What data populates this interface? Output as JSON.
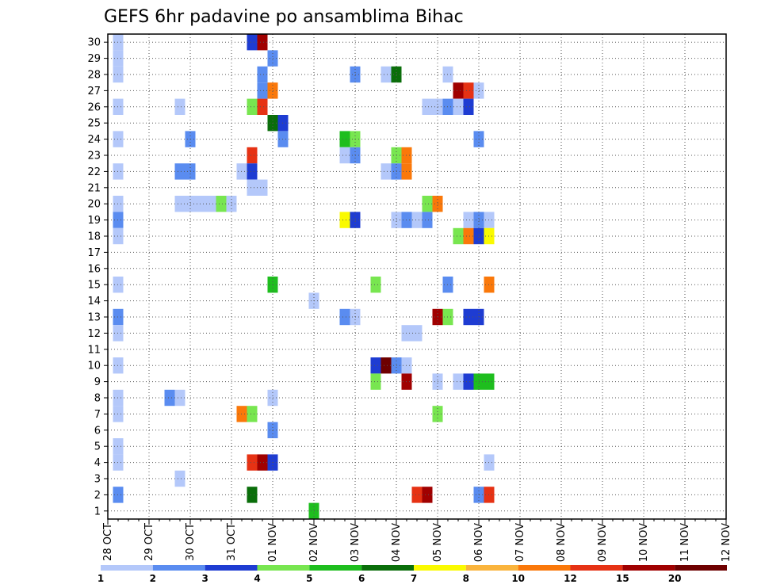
{
  "chart_data": {
    "type": "heatmap",
    "title": "GEFS 6hr padavine po ansamblima Bihac",
    "xlabel": "",
    "ylabel": "",
    "x_tick_labels": [
      "28 OCT",
      "29 OCT",
      "30 OCT",
      "31 OCT",
      "01 NOV",
      "02 NOV",
      "03 NOV",
      "04 NOV",
      "05 NOV",
      "06 NOV",
      "07 NOV",
      "08 NOV",
      "09 NOV",
      "10 NOV",
      "11 NOV",
      "12 NOV"
    ],
    "y_tick_labels": [
      1,
      2,
      3,
      4,
      5,
      6,
      7,
      8,
      9,
      10,
      11,
      12,
      13,
      14,
      15,
      16,
      17,
      18,
      19,
      20,
      21,
      22,
      23,
      24,
      25,
      26,
      27,
      28,
      29,
      30
    ],
    "ylim": [
      0,
      30
    ],
    "time_step_hours": 6,
    "steps_per_day": 4,
    "grid": "dotted",
    "legend": {
      "position": "bottom",
      "labels": [
        "1",
        "2",
        "3",
        "4",
        "5",
        "6",
        "7",
        "8",
        "10",
        "12",
        "15",
        "20"
      ],
      "colors": [
        "#b4c8fa",
        "#5a8cf0",
        "#1e3cd2",
        "#78e650",
        "#1ebe1e",
        "#0a6e0a",
        "#fafa00",
        "#fab43c",
        "#fa780a",
        "#e63214",
        "#a00000",
        "#6e0000"
      ]
    },
    "cells": [
      [
        1,
        30,
        1
      ],
      [
        14,
        30,
        3
      ],
      [
        15,
        30,
        11
      ],
      [
        1,
        29,
        1
      ],
      [
        16,
        29,
        2
      ],
      [
        1,
        28,
        1
      ],
      [
        15,
        28,
        2
      ],
      [
        24,
        28,
        2
      ],
      [
        27,
        28,
        1
      ],
      [
        28,
        28,
        6
      ],
      [
        33,
        28,
        1
      ],
      [
        15,
        27,
        2
      ],
      [
        16,
        27,
        9
      ],
      [
        34,
        27,
        11
      ],
      [
        35,
        27,
        10
      ],
      [
        36,
        27,
        1
      ],
      [
        1,
        26,
        1
      ],
      [
        7,
        26,
        1
      ],
      [
        14,
        26,
        4
      ],
      [
        15,
        26,
        10
      ],
      [
        31,
        26,
        1
      ],
      [
        32,
        26,
        1
      ],
      [
        33,
        26,
        2
      ],
      [
        34,
        26,
        1
      ],
      [
        35,
        26,
        3
      ],
      [
        16,
        25,
        6
      ],
      [
        17,
        25,
        3
      ],
      [
        36,
        24,
        2
      ],
      [
        1,
        24,
        1
      ],
      [
        8,
        24,
        2
      ],
      [
        17,
        24,
        2
      ],
      [
        23,
        24,
        5
      ],
      [
        24,
        24,
        4
      ],
      [
        14,
        23,
        10
      ],
      [
        23,
        23,
        1
      ],
      [
        24,
        23,
        2
      ],
      [
        28,
        23,
        4
      ],
      [
        29,
        23,
        9
      ],
      [
        1,
        22,
        1
      ],
      [
        7,
        22,
        2
      ],
      [
        8,
        22,
        2
      ],
      [
        13,
        22,
        1
      ],
      [
        14,
        22,
        3
      ],
      [
        27,
        22,
        1
      ],
      [
        28,
        22,
        2
      ],
      [
        29,
        22,
        9
      ],
      [
        14,
        21,
        1
      ],
      [
        15,
        21,
        1
      ],
      [
        1,
        20,
        1
      ],
      [
        7,
        20,
        1
      ],
      [
        8,
        20,
        1
      ],
      [
        9,
        20,
        1
      ],
      [
        10,
        20,
        1
      ],
      [
        11,
        20,
        4
      ],
      [
        12,
        20,
        1
      ],
      [
        31,
        20,
        4
      ],
      [
        32,
        20,
        9
      ],
      [
        1,
        19,
        2
      ],
      [
        23,
        19,
        7
      ],
      [
        24,
        19,
        3
      ],
      [
        28,
        19,
        1
      ],
      [
        29,
        19,
        2
      ],
      [
        30,
        19,
        1
      ],
      [
        31,
        19,
        2
      ],
      [
        35,
        19,
        1
      ],
      [
        36,
        19,
        2
      ],
      [
        37,
        19,
        1
      ],
      [
        1,
        18,
        1
      ],
      [
        34,
        18,
        4
      ],
      [
        35,
        18,
        9
      ],
      [
        36,
        18,
        3
      ],
      [
        37,
        18,
        7
      ],
      [
        1,
        15,
        1
      ],
      [
        16,
        15,
        5
      ],
      [
        26,
        15,
        4
      ],
      [
        33,
        15,
        2
      ],
      [
        37,
        15,
        9
      ],
      [
        20,
        14,
        1
      ],
      [
        1,
        13,
        2
      ],
      [
        23,
        13,
        2
      ],
      [
        24,
        13,
        1
      ],
      [
        32,
        13,
        11
      ],
      [
        33,
        13,
        4
      ],
      [
        35,
        13,
        3
      ],
      [
        36,
        13,
        3
      ],
      [
        1,
        12,
        1
      ],
      [
        29,
        12,
        1
      ],
      [
        30,
        12,
        1
      ],
      [
        1,
        10,
        1
      ],
      [
        26,
        10,
        3
      ],
      [
        27,
        10,
        12
      ],
      [
        28,
        10,
        2
      ],
      [
        29,
        10,
        1
      ],
      [
        26,
        9,
        4
      ],
      [
        29,
        9,
        11
      ],
      [
        32,
        9,
        1
      ],
      [
        34,
        9,
        1
      ],
      [
        35,
        9,
        3
      ],
      [
        36,
        9,
        5
      ],
      [
        37,
        9,
        5
      ],
      [
        1,
        8,
        1
      ],
      [
        6,
        8,
        2
      ],
      [
        7,
        8,
        1
      ],
      [
        16,
        8,
        1
      ],
      [
        1,
        7,
        1
      ],
      [
        13,
        7,
        9
      ],
      [
        14,
        7,
        4
      ],
      [
        32,
        7,
        4
      ],
      [
        16,
        6,
        2
      ],
      [
        1,
        5,
        1
      ],
      [
        1,
        4,
        1
      ],
      [
        14,
        4,
        10
      ],
      [
        15,
        4,
        11
      ],
      [
        16,
        4,
        3
      ],
      [
        37,
        4,
        1
      ],
      [
        7,
        3,
        1
      ],
      [
        1,
        2,
        2
      ],
      [
        14,
        2,
        6
      ],
      [
        30,
        2,
        10
      ],
      [
        31,
        2,
        11
      ],
      [
        36,
        2,
        2
      ],
      [
        37,
        2,
        10
      ],
      [
        20,
        1,
        5
      ]
    ]
  }
}
